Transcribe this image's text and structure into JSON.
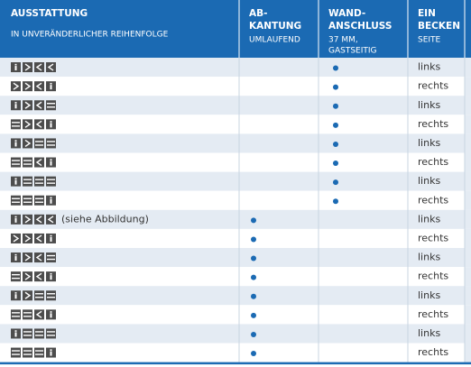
{
  "header": {
    "columns": [
      {
        "title": [
          "AUSSTATTUNG"
        ],
        "subtitle": [
          "IN UNVERÄNDERLICHER REIHENFOLGE"
        ]
      },
      {
        "title": [
          "AB-",
          "KANTUNG"
        ],
        "subtitle": [
          "UMLAUFEND"
        ]
      },
      {
        "title": [
          "WAND-",
          "ANSCHLUSS"
        ],
        "subtitle": [
          "37 MM,",
          "GASTSEITIG"
        ]
      },
      {
        "title": [
          "EIN",
          "BECKEN"
        ],
        "subtitle": [
          "SEITE"
        ]
      }
    ]
  },
  "table": {
    "rows": [
      {
        "abkantung": false,
        "wandanschluss": true,
        "seite": "links"
      },
      {
        "abkantung": false,
        "wandanschluss": true,
        "seite": "rechts"
      },
      {
        "abkantung": false,
        "wandanschluss": true,
        "seite": "links"
      },
      {
        "abkantung": false,
        "wandanschluss": true,
        "seite": "rechts"
      },
      {
        "abkantung": false,
        "wandanschluss": true,
        "seite": "links"
      },
      {
        "abkantung": false,
        "wandanschluss": true,
        "seite": "rechts"
      },
      {
        "abkantung": false,
        "wandanschluss": true,
        "seite": "links"
      },
      {
        "abkantung": false,
        "wandanschluss": true,
        "seite": "rechts"
      },
      {
        "note": "(siehe Abbildung)",
        "abkantung": true,
        "wandanschluss": false,
        "seite": "links"
      },
      {
        "abkantung": true,
        "wandanschluss": false,
        "seite": "rechts"
      },
      {
        "abkantung": true,
        "wandanschluss": false,
        "seite": "links"
      },
      {
        "abkantung": true,
        "wandanschluss": false,
        "seite": "rechts"
      },
      {
        "abkantung": true,
        "wandanschluss": false,
        "seite": "links"
      },
      {
        "abkantung": true,
        "wandanschluss": false,
        "seite": "rechts"
      },
      {
        "abkantung": true,
        "wandanschluss": false,
        "seite": "links"
      },
      {
        "abkantung": true,
        "wandanschluss": false,
        "seite": "rechts"
      }
    ]
  }
}
